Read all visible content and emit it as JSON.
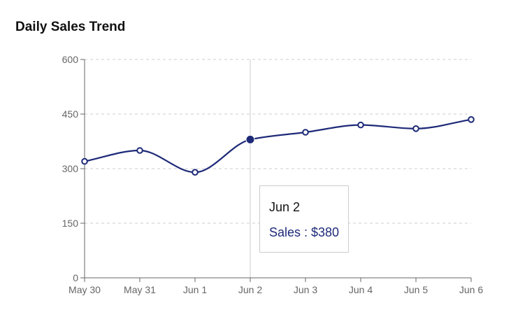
{
  "chart_data": {
    "type": "line",
    "title": "Daily Sales Trend",
    "categories": [
      "May 30",
      "May 31",
      "Jun 1",
      "Jun 2",
      "Jun 3",
      "Jun 4",
      "Jun 5",
      "Jun 6"
    ],
    "series": [
      {
        "name": "Sales",
        "values": [
          320,
          350,
          290,
          380,
          400,
          420,
          410,
          435
        ]
      }
    ],
    "ylim": [
      0,
      600
    ],
    "yticks": [
      0,
      150,
      300,
      450,
      600
    ],
    "grid": "horizontal-dashed",
    "active_index": 3,
    "tooltip": {
      "label": "Jun 2",
      "value_text": "Sales : $380"
    },
    "colors": {
      "line": "#1e2a78",
      "grid": "#cccccc",
      "axis": "#666666",
      "cursor": "#cccccc"
    }
  }
}
